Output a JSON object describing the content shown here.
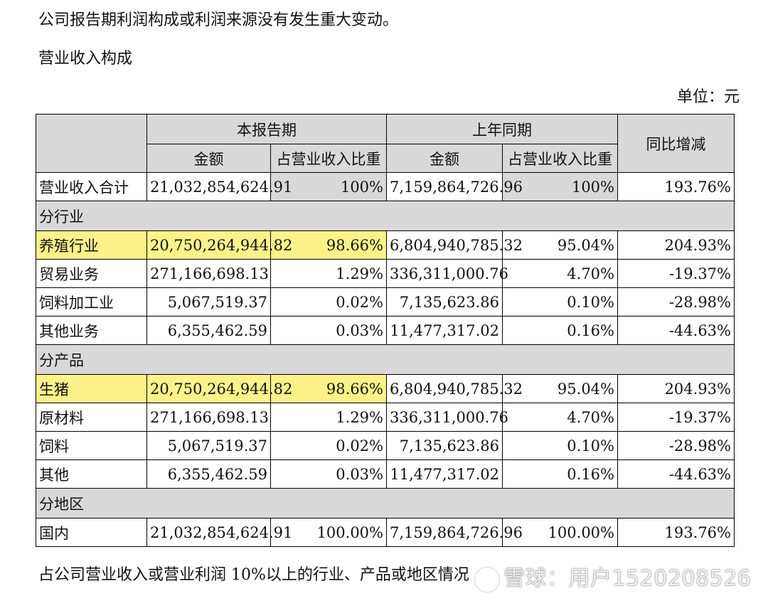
{
  "intro": "公司报告期利润构成或利润来源没有发生重大变动。",
  "section_title": "营业收入构成",
  "unit": "单位：元",
  "table": {
    "header": {
      "current_period": "本报告期",
      "prior_period": "上年同期",
      "yoy_change": "同比增减",
      "amount": "金额",
      "share": "占营业收入比重"
    },
    "total": {
      "label": "营业收入合计",
      "cur_amount": "21,032,854,624.91",
      "cur_share": "100%",
      "prior_amount": "7,159,864,726.96",
      "prior_share": "100%",
      "yoy": "193.76%"
    },
    "sections": [
      {
        "title": "分行业",
        "rows": [
          {
            "label": "养殖行业",
            "cur_amount": "20,750,264,944.82",
            "cur_share": "98.66%",
            "prior_amount": "6,804,940,785.32",
            "prior_share": "95.04%",
            "yoy": "204.93%"
          },
          {
            "label": "贸易业务",
            "cur_amount": "271,166,698.13",
            "cur_share": "1.29%",
            "prior_amount": "336,311,000.76",
            "prior_share": "4.70%",
            "yoy": "-19.37%"
          },
          {
            "label": "饲料加工业",
            "cur_amount": "5,067,519.37",
            "cur_share": "0.02%",
            "prior_amount": "7,135,623.86",
            "prior_share": "0.10%",
            "yoy": "-28.98%"
          },
          {
            "label": "其他业务",
            "cur_amount": "6,355,462.59",
            "cur_share": "0.03%",
            "prior_amount": "11,477,317.02",
            "prior_share": "0.16%",
            "yoy": "-44.63%"
          }
        ]
      },
      {
        "title": "分产品",
        "rows": [
          {
            "label": "生猪",
            "cur_amount": "20,750,264,944.82",
            "cur_share": "98.66%",
            "prior_amount": "6,804,940,785.32",
            "prior_share": "95.04%",
            "yoy": "204.93%"
          },
          {
            "label": "原材料",
            "cur_amount": "271,166,698.13",
            "cur_share": "1.29%",
            "prior_amount": "336,311,000.76",
            "prior_share": "4.70%",
            "yoy": "-19.37%"
          },
          {
            "label": "饲料",
            "cur_amount": "5,067,519.37",
            "cur_share": "0.02%",
            "prior_amount": "7,135,623.86",
            "prior_share": "0.10%",
            "yoy": "-28.98%"
          },
          {
            "label": "其他",
            "cur_amount": "6,355,462.59",
            "cur_share": "0.03%",
            "prior_amount": "11,477,317.02",
            "prior_share": "0.16%",
            "yoy": "-44.63%"
          }
        ]
      },
      {
        "title": "分地区",
        "rows": [
          {
            "label": "国内",
            "cur_amount": "21,032,854,624.91",
            "cur_share": "100.00%",
            "prior_amount": "7,159,864,726.96",
            "prior_share": "100.00%",
            "yoy": "193.76%"
          }
        ]
      }
    ]
  },
  "footer": "占公司营业收入或营业利润 10%以上的行业、产品或地区情况",
  "watermark": "雪球：用户1520208526",
  "colors": {
    "header_gray": "#d9d9d9",
    "highlight_yellow": "#fdf28a"
  }
}
